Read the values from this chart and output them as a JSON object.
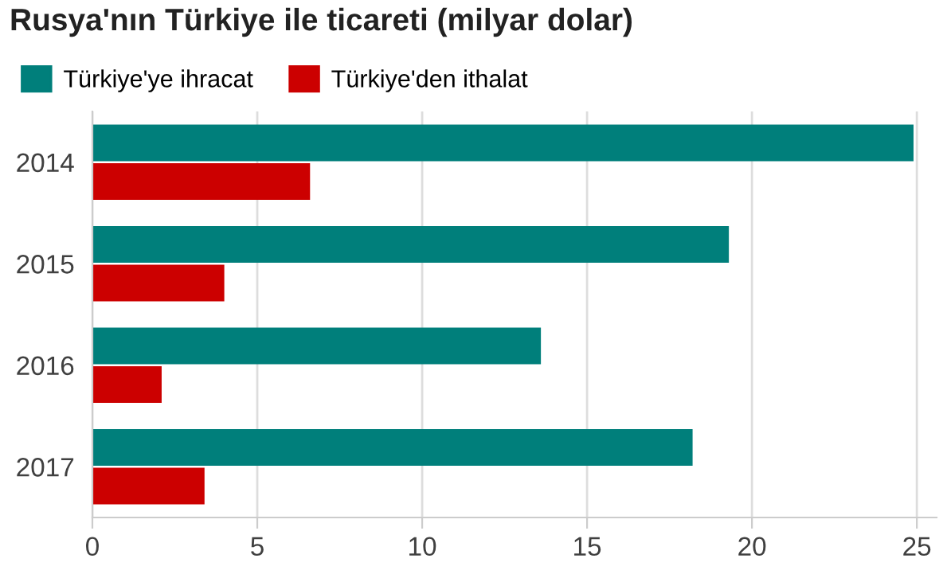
{
  "chart_data": {
    "type": "bar",
    "orientation": "horizontal",
    "title": "Rusya'nın Türkiye ile ticareti (milyar dolar)",
    "categories": [
      "2014",
      "2015",
      "2016",
      "2017"
    ],
    "series": [
      {
        "name": "Türkiye'ye ihracat",
        "color": "#007f7b",
        "values": [
          24.9,
          19.3,
          13.6,
          18.2
        ]
      },
      {
        "name": "Türkiye'den ithalat",
        "color": "#cc0000",
        "values": [
          6.6,
          4.0,
          2.1,
          3.4
        ]
      }
    ],
    "xlim": [
      0,
      25.6
    ],
    "xticks": [
      0,
      5,
      10,
      15,
      20,
      25
    ],
    "grid": "x",
    "legend": "top left"
  }
}
